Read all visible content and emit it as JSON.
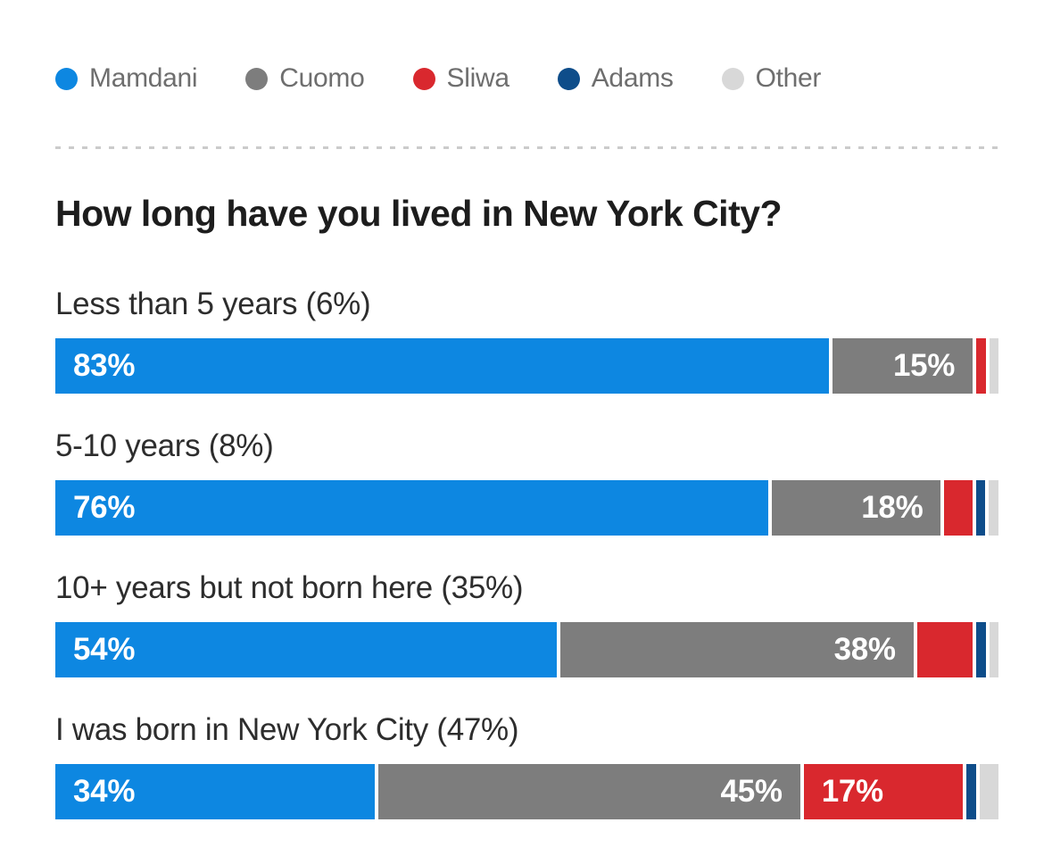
{
  "title": "How long have you lived in New York City?",
  "legend": {
    "items": [
      {
        "name": "mamdani",
        "label": "Mamdani",
        "color": "#0d87e1"
      },
      {
        "name": "cuomo",
        "label": "Cuomo",
        "color": "#7d7d7d"
      },
      {
        "name": "sliwa",
        "label": "Sliwa",
        "color": "#d9282e"
      },
      {
        "name": "adams",
        "label": "Adams",
        "color": "#0e4d8a"
      },
      {
        "name": "other",
        "label": "Other",
        "color": "#d8d8d8"
      }
    ]
  },
  "colors": {
    "mamdani": "#0d87e1",
    "cuomo": "#7d7d7d",
    "sliwa": "#d9282e",
    "adams": "#0e4d8a",
    "other": "#d8d8d8",
    "divider": "#cbcbcb",
    "title_text": "#1d1d1d",
    "label_text": "#2d2d2d",
    "legend_text": "#6e6e6e",
    "bar_value_text": "#ffffff"
  },
  "chart_data": {
    "type": "bar",
    "variant": "stacked-horizontal",
    "unit": "%",
    "xlim": [
      0,
      100
    ],
    "grid": false,
    "legend_position": "top",
    "title": "How long have you lived in New York City?",
    "categories": [
      "Less than 5 years (6%)",
      "5-10 years (8%)",
      "10+ years but not born here (35%)",
      "I was born in New York City (47%)"
    ],
    "series": [
      {
        "name": "Mamdani",
        "color": "#0d87e1",
        "label_align": "left",
        "values": [
          83,
          76,
          54,
          34
        ]
      },
      {
        "name": "Cuomo",
        "color": "#7d7d7d",
        "label_align": "right",
        "values": [
          15,
          18,
          38,
          45
        ]
      },
      {
        "name": "Sliwa",
        "color": "#d9282e",
        "label_align": "left",
        "values": [
          1,
          3,
          6,
          17
        ]
      },
      {
        "name": "Adams",
        "color": "#0e4d8a",
        "label_align": "left",
        "values": [
          0,
          1,
          1,
          1
        ]
      },
      {
        "name": "Other",
        "color": "#d8d8d8",
        "label_align": "left",
        "values": [
          1,
          1,
          1,
          2
        ]
      }
    ],
    "value_label_min": 15,
    "value_label_format": "{v}%"
  }
}
